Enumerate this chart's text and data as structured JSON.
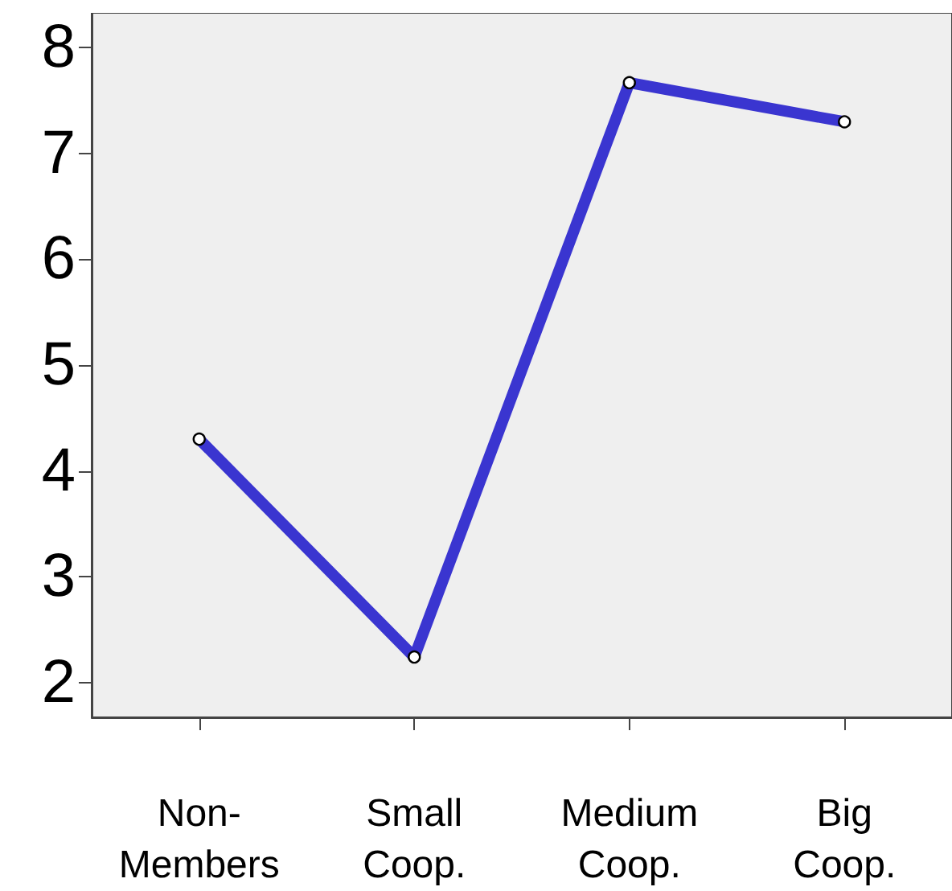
{
  "chart_data": {
    "type": "line",
    "categories": [
      "Non-Members",
      "Small Coop.",
      "Medium Coop.",
      "Big Coop."
    ],
    "series": [
      {
        "color": "#3a35d0",
        "values": [
          4.3,
          2.24,
          7.67,
          7.3
        ]
      }
    ],
    "ylim": [
      1.67,
      8.33
    ],
    "yticks": [
      2,
      3,
      4,
      5,
      6,
      7,
      8
    ],
    "grid": false,
    "marker": "circle",
    "line_style": "solid"
  }
}
